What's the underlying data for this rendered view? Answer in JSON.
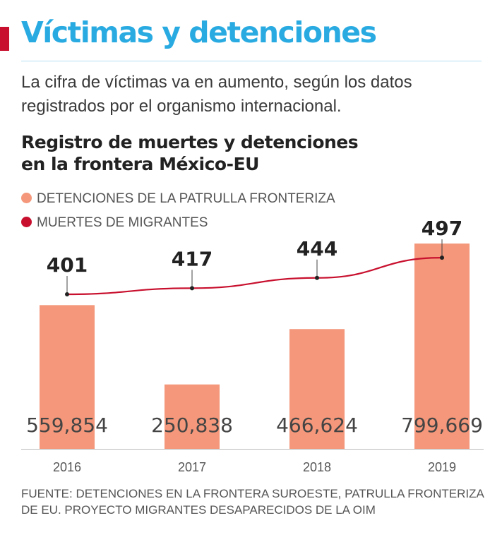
{
  "header": {
    "title": "Víctimas y detenciones",
    "subtitle": "La cifra de víctimas va en aumento, según los datos registrados por el organismo internacional."
  },
  "colors": {
    "accent": "#c8102e",
    "title": "#29abe2",
    "bars": "#f4977a",
    "line": "#c8102e"
  },
  "chart_data": {
    "type": "bar",
    "title_lines": [
      "Registro de muertes y detenciones",
      "en la frontera México-EU"
    ],
    "categories": [
      "2016",
      "2017",
      "2018",
      "2019"
    ],
    "series": [
      {
        "name": "DETENCIONES DE LA PATRULLA FRONTERIZA",
        "type": "bar",
        "values": [
          559854,
          250838,
          466624,
          799669
        ],
        "labels": [
          "559,854",
          "250,838",
          "466,624",
          "799,669"
        ]
      },
      {
        "name": "MUERTES DE MIGRANTES",
        "type": "line",
        "values": [
          401,
          417,
          444,
          497
        ],
        "labels": [
          "401",
          "417",
          "444",
          "497"
        ]
      }
    ],
    "xlabel": "",
    "ylabel": "",
    "grid": false,
    "legend_position": "top-left"
  },
  "source": "FUENTE: DETENCIONES EN LA FRONTERA SUROESTE, PATRULLA FRONTERIZA DE EU. PROYECTO MIGRANTES DESAPARECIDOS DE LA OIM"
}
